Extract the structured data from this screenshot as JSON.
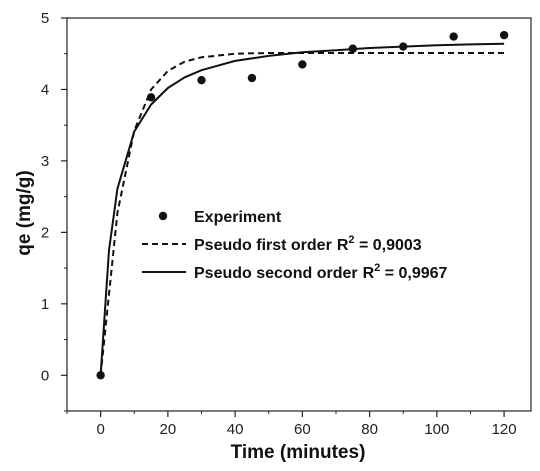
{
  "chart_data": {
    "type": "scatter",
    "title": "",
    "xlabel": "Time (minutes)",
    "ylabel": "qe (mg/g)",
    "xlim": [
      -10,
      128
    ],
    "ylim": [
      -0.5,
      5
    ],
    "xticks": [
      0,
      20,
      40,
      60,
      80,
      100,
      120
    ],
    "yticks": [
      0,
      1,
      2,
      3,
      4,
      5
    ],
    "grid": false,
    "legend_position": "center",
    "series": [
      {
        "name": "Experiment",
        "kind": "scatter",
        "marker": "filled-circle",
        "x": [
          0,
          15,
          30,
          45,
          60,
          75,
          90,
          105,
          120
        ],
        "y": [
          0,
          3.89,
          4.13,
          4.16,
          4.35,
          4.57,
          4.6,
          4.74,
          4.76
        ]
      },
      {
        "name": "Pseudo first order",
        "r2_label": "R",
        "r2_sup": "2",
        "r2_value": " = 0,9003",
        "kind": "line",
        "style": "dashed",
        "x": [
          0,
          5,
          10,
          15,
          20,
          25,
          30,
          40,
          50,
          60,
          70,
          80,
          90,
          100,
          110,
          120
        ],
        "y": [
          0,
          2.27,
          3.42,
          4.0,
          4.26,
          4.39,
          4.45,
          4.5,
          4.51,
          4.51,
          4.51,
          4.51,
          4.51,
          4.51,
          4.51,
          4.51
        ]
      },
      {
        "name": "Pseudo second order",
        "r2_label": "R",
        "r2_sup": "2",
        "r2_value": " = 0,9967",
        "kind": "line",
        "style": "solid",
        "x": [
          0,
          2.5,
          5,
          10,
          15,
          20,
          25,
          30,
          40,
          50,
          60,
          70,
          80,
          90,
          100,
          110,
          120
        ],
        "y": [
          0,
          1.75,
          2.61,
          3.41,
          3.79,
          4.02,
          4.17,
          4.27,
          4.4,
          4.47,
          4.52,
          4.55,
          4.58,
          4.6,
          4.62,
          4.63,
          4.64
        ]
      }
    ]
  },
  "colors": {
    "axis": "#222222",
    "series": "#111111",
    "background": "#ffffff"
  }
}
